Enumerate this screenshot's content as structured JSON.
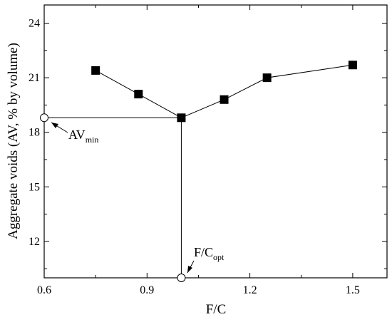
{
  "chart_data": {
    "type": "line",
    "xlabel": "F/C",
    "ylabel": "Aggregate voids (AV, % by volume)",
    "xlim": [
      0.6,
      1.6
    ],
    "ylim": [
      10,
      25
    ],
    "xticks": [
      0.6,
      0.9,
      1.2,
      1.5
    ],
    "yticks": [
      12,
      15,
      18,
      21,
      24
    ],
    "x_tick_labels": [
      "0.6",
      "0.9",
      "1.2",
      "1.5"
    ],
    "y_tick_labels": [
      "12",
      "15",
      "18",
      "21",
      "24"
    ],
    "series": [
      {
        "marker": "filled-square",
        "color": "#000000",
        "x": [
          0.75,
          0.875,
          1.0,
          1.125,
          1.25,
          1.5
        ],
        "y": [
          21.4,
          20.1,
          18.8,
          19.8,
          21.0,
          21.7
        ]
      }
    ],
    "annotations": {
      "av_min": {
        "base": "AV",
        "sub": "min",
        "x": 0.6,
        "y": 18.8
      },
      "fc_opt": {
        "base": "F/C",
        "sub": "opt",
        "x": 1.0,
        "y": 10.0
      }
    },
    "grid": false,
    "legend": "none"
  }
}
